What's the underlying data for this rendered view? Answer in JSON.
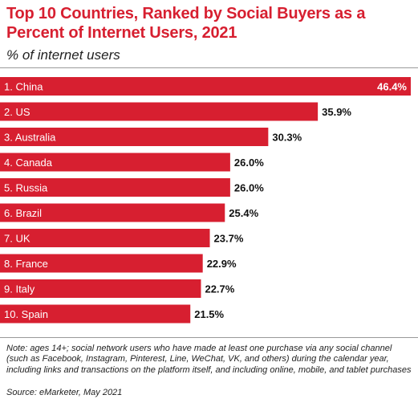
{
  "header": {
    "title": "Top 10 Countries, Ranked by Social Buyers as a Percent of Internet Users, 2021",
    "subtitle": "% of internet users"
  },
  "footer": {
    "note": "Note: ages 14+; social network users who have made at least one purchase via any social channel (such as Facebook, Instagram, Pinterest, Line, WeChat, VK, and others) during the calendar year, including links and transactions on the platform itself, and including online, mobile, and tablet purchases",
    "source": "Source: eMarketer, May 2021"
  },
  "colors": {
    "bar": "#d71f30",
    "title": "#d71f30",
    "label_on_bar": "#ffffff",
    "value_text": "#111111"
  },
  "chart_data": {
    "type": "bar",
    "orientation": "horizontal",
    "categories": [
      "1. China",
      "2. US",
      "3. Australia",
      "4. Canada",
      "5. Russia",
      "6. Brazil",
      "7. UK",
      "8. France",
      "9. Italy",
      "10. Spain"
    ],
    "values": [
      46.4,
      35.9,
      30.3,
      26.0,
      26.0,
      25.4,
      23.7,
      22.9,
      22.7,
      21.5
    ],
    "value_labels": [
      "46.4%",
      "35.9%",
      "30.3%",
      "26.0%",
      "26.0%",
      "25.4%",
      "23.7%",
      "22.9%",
      "22.7%",
      "21.5%"
    ],
    "title": "Top 10 Countries, Ranked by Social Buyers as a Percent of Internet Users, 2021",
    "xlabel": "",
    "ylabel": "",
    "xlim": [
      0,
      46.4
    ],
    "grid": false,
    "legend": "none"
  }
}
